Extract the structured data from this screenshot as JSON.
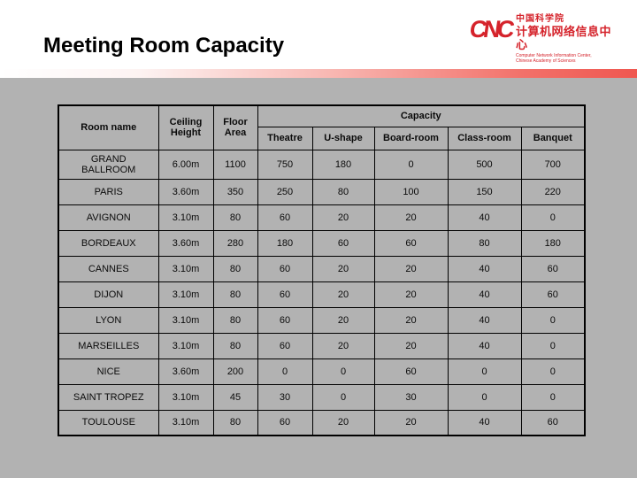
{
  "title": "Meeting Room Capacity",
  "logo": {
    "mark": "CNC",
    "cn_line1": "中国科学院",
    "cn_line2": "计算机网络信息中心",
    "en_line1": "Computer Network Information Center,",
    "en_line2": "Chinese Academy of Sciences"
  },
  "colors": {
    "slide_gray": "#b2b2b2",
    "accent_red": "#ef5750",
    "logo_red": "#d5232b",
    "table_border": "#000000",
    "text": "#000000"
  },
  "table": {
    "columns": [
      "Room name",
      "Ceiling Height",
      "Floor Area"
    ],
    "capacity_header": "Capacity",
    "capacity_columns": [
      "Theatre",
      "U-shape",
      "Board-room",
      "Class-room",
      "Banquet"
    ],
    "rows": [
      [
        "GRAND\nBALLROOM",
        "6.00m",
        "1100",
        "750",
        "180",
        "0",
        "500",
        "700"
      ],
      [
        "PARIS",
        "3.60m",
        "350",
        "250",
        "80",
        "100",
        "150",
        "220"
      ],
      [
        "AVIGNON",
        "3.10m",
        "80",
        "60",
        "20",
        "20",
        "40",
        "0"
      ],
      [
        "BORDEAUX",
        "3.60m",
        "280",
        "180",
        "60",
        "60",
        "80",
        "180"
      ],
      [
        "CANNES",
        "3.10m",
        "80",
        "60",
        "20",
        "20",
        "40",
        "60"
      ],
      [
        "DIJON",
        "3.10m",
        "80",
        "60",
        "20",
        "20",
        "40",
        "60"
      ],
      [
        "LYON",
        "3.10m",
        "80",
        "60",
        "20",
        "20",
        "40",
        "0"
      ],
      [
        "MARSEILLES",
        "3.10m",
        "80",
        "60",
        "20",
        "20",
        "40",
        "0"
      ],
      [
        "NICE",
        "3.60m",
        "200",
        "0",
        "0",
        "60",
        "0",
        "0"
      ],
      [
        "SAINT TROPEZ",
        "3.10m",
        "45",
        "30",
        "0",
        "30",
        "0",
        "0"
      ],
      [
        "TOULOUSE",
        "3.10m",
        "80",
        "60",
        "20",
        "20",
        "40",
        "60"
      ]
    ]
  }
}
